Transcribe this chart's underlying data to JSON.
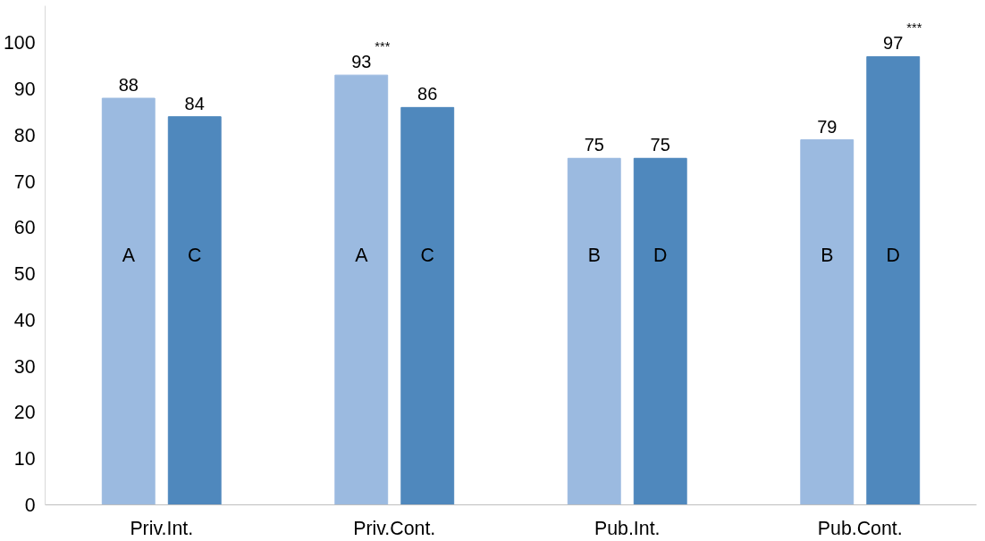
{
  "chart_data": {
    "type": "bar",
    "categories": [
      "Priv.Int.",
      "Priv.Cont.",
      "Pub.Int.",
      "Pub.Cont."
    ],
    "series": [
      {
        "color": "#9bbae0",
        "values": [
          88,
          93,
          75,
          79
        ],
        "value_labels": [
          "88",
          "93$^{***}$",
          "75",
          "79"
        ]
      },
      {
        "color": "#4f88bd",
        "values": [
          84,
          86,
          75,
          97
        ],
        "value_labels": [
          "84",
          "86",
          "75",
          "97$^{***}$"
        ]
      }
    ],
    "ylim": [
      0,
      108
    ],
    "yticks": [
      0,
      10,
      20,
      30,
      40,
      50,
      60,
      70,
      80,
      90,
      100
    ],
    "grid": false,
    "annotations": [
      "A",
      "C",
      "A",
      "C",
      "B",
      "D",
      "B",
      "D"
    ]
  }
}
